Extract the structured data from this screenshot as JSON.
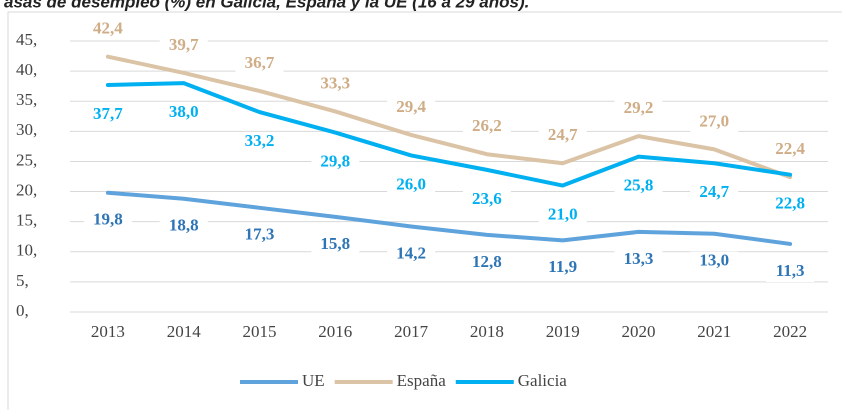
{
  "chart_data": {
    "type": "line",
    "title": "asas de desempleo (%) en Galicia, España y la UE (16 a 29 años).",
    "categories": [
      "2013",
      "2014",
      "2015",
      "2016",
      "2017",
      "2018",
      "2019",
      "2020",
      "2021",
      "2022"
    ],
    "series": [
      {
        "name": "UE",
        "color": "#5fa3dc",
        "label_color": "#2e75b6",
        "values": [
          19.8,
          18.8,
          17.3,
          15.8,
          14.2,
          12.8,
          11.9,
          13.3,
          13.0,
          11.3
        ],
        "value_labels": [
          "19,8",
          "18,8",
          "17,3",
          "15,8",
          "14,2",
          "12,8",
          "11,9",
          "13,3",
          "13,0",
          "11,3"
        ]
      },
      {
        "name": "España",
        "color": "#dbc3a5",
        "label_color": "#cfad86",
        "values": [
          42.4,
          39.7,
          36.7,
          33.3,
          29.4,
          26.2,
          24.7,
          29.2,
          27.0,
          22.4
        ],
        "value_labels": [
          "42,4",
          "39,7",
          "36,7",
          "33,3",
          "29,4",
          "26,2",
          "24,7",
          "29,2",
          "27,0",
          "22,4"
        ]
      },
      {
        "name": "Galicia",
        "color": "#00b0f0",
        "label_color": "#00b0f0",
        "values": [
          37.7,
          38.0,
          33.2,
          29.8,
          26.0,
          23.6,
          21.0,
          25.8,
          24.7,
          22.8
        ],
        "value_labels": [
          "37,7",
          "38,0",
          "33,2",
          "29,8",
          "26,0",
          "23,6",
          "21,0",
          "25,8",
          "24,7",
          "22,8"
        ]
      }
    ],
    "ylim": [
      0,
      45
    ],
    "yticks": [
      {
        "value": 0,
        "label": "0,"
      },
      {
        "value": 5,
        "label": "5,"
      },
      {
        "value": 10,
        "label": "10,"
      },
      {
        "value": 15,
        "label": "15,"
      },
      {
        "value": 20,
        "label": "20,"
      },
      {
        "value": 25,
        "label": "25,"
      },
      {
        "value": 30,
        "label": "30,"
      },
      {
        "value": 35,
        "label": "35,"
      },
      {
        "value": 40,
        "label": "40,"
      },
      {
        "value": 45,
        "label": "45,"
      }
    ],
    "grid": true,
    "legend": "bottom"
  }
}
